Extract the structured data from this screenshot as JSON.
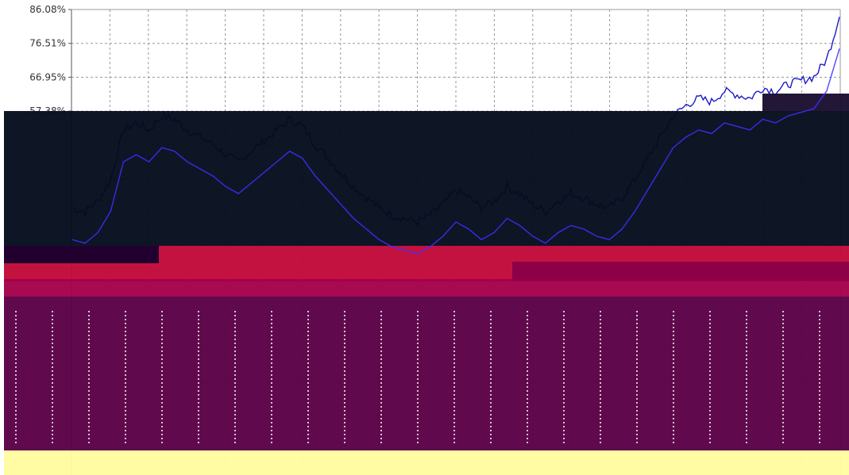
{
  "chart_data": {
    "type": "line",
    "title": "",
    "xlabel": "",
    "ylabel": "",
    "ylim": [
      0,
      86.08
    ],
    "y_tick_labels": [
      "86.08%",
      "76.51%",
      "66.95%",
      "57.38%"
    ],
    "y_tick_values": [
      86.08,
      76.51,
      66.95,
      57.38
    ],
    "grid": true,
    "grid_style": "dashed",
    "series": [
      {
        "color": "#1a1acc",
        "x": [
          0,
          1,
          2,
          3,
          4,
          5,
          6,
          7,
          8,
          9,
          10,
          11,
          12,
          13,
          14,
          15,
          16,
          17,
          18,
          19,
          20,
          21,
          22,
          23,
          24,
          25,
          26,
          27,
          28,
          29,
          30,
          31,
          32,
          33,
          34,
          35,
          36,
          37,
          38,
          39,
          40,
          41,
          42,
          43,
          44,
          45,
          46,
          47,
          48,
          49,
          50,
          51,
          52,
          53,
          54,
          55,
          56,
          57,
          58,
          59,
          60
        ],
        "values": [
          30,
          29,
          32,
          38,
          52,
          54,
          52,
          56,
          55,
          52,
          50,
          48,
          45,
          43,
          46,
          49,
          52,
          55,
          53,
          48,
          44,
          40,
          36,
          33,
          30,
          28,
          27,
          26,
          28,
          31,
          35,
          33,
          30,
          32,
          36,
          34,
          31,
          29,
          32,
          34,
          33,
          31,
          30,
          33,
          38,
          44,
          50,
          56,
          59,
          61,
          60,
          63,
          62,
          61,
          64,
          63,
          65,
          66,
          67,
          72,
          84
        ]
      }
    ]
  },
  "colors": {
    "background": "#ffffff",
    "grid": "#9a9a9a",
    "axis": "#555555",
    "series": "#1a1acc",
    "overlay_dark": "#040b1c",
    "overlay_red": "#c20838",
    "overlay_purple": "#5a0046",
    "overlay_yellow": "#fffca0"
  }
}
